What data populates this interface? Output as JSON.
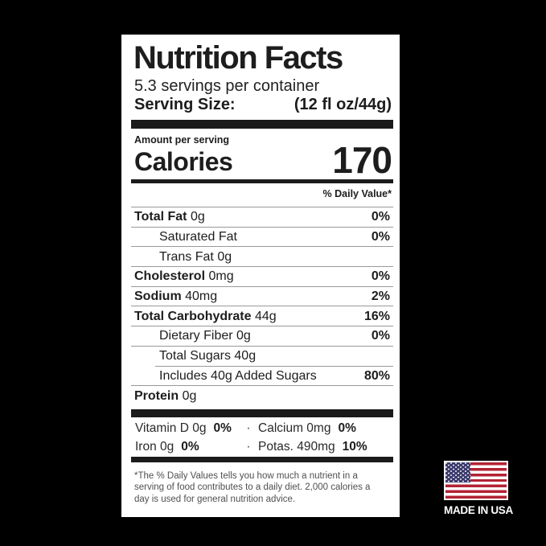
{
  "colors": {
    "background": "#000000",
    "label_background": "#ffffff",
    "text": "#1d1d1d",
    "hairline": "#999999",
    "section_bar": "#1b1b1b",
    "flag_red": "#b22234",
    "flag_blue": "#3c3b6e",
    "badge_text": "#ffffff"
  },
  "label": {
    "title": "Nutrition Facts",
    "servings_per_container": "5.3 servings per container",
    "serving_size_label": "Serving Size:",
    "serving_size_value": "(12 fl oz/44g)",
    "amount_per_serving": "Amount per serving",
    "calories_label": "Calories",
    "calories_value": "170",
    "daily_value_header": "% Daily Value*",
    "nutrients": [
      {
        "name": "Total Fat",
        "amount": "0g",
        "dv": "0%"
      },
      {
        "name": "Saturated Fat",
        "amount": "",
        "dv": "0%"
      },
      {
        "name": "Trans Fat",
        "amount": "0g",
        "dv": ""
      },
      {
        "name": "Cholesterol",
        "amount": "0mg",
        "dv": "0%"
      },
      {
        "name": "Sodium",
        "amount": "40mg",
        "dv": "2%"
      },
      {
        "name": "Total Carbohydrate",
        "amount": "44g",
        "dv": "16%"
      },
      {
        "name": "Dietary Fiber",
        "amount": "0g",
        "dv": "0%"
      },
      {
        "name": "Total Sugars",
        "amount": "40g",
        "dv": ""
      },
      {
        "name": "Includes 40g Added Sugars",
        "amount": "",
        "dv": "80%"
      },
      {
        "name": "Protein",
        "amount": "0g",
        "dv": ""
      }
    ],
    "micronutrients": {
      "separator": "·",
      "rows": [
        {
          "left_name": "Vitamin D 0g",
          "left_dv": "0%",
          "right_name": "Calcium 0mg",
          "right_dv": "0%"
        },
        {
          "left_name": "Iron 0g",
          "left_dv": "0%",
          "right_name": "Potas. 490mg",
          "right_dv": "10%"
        }
      ]
    },
    "footnote": "*The % Daily Values tells you how much a nutrient in a serving of food contributes to a daily diet. 2,000 calories a day is used for general nutrition advice."
  },
  "badge": {
    "flag_icon": "usa-flag-icon",
    "text": "MADE IN USA"
  }
}
